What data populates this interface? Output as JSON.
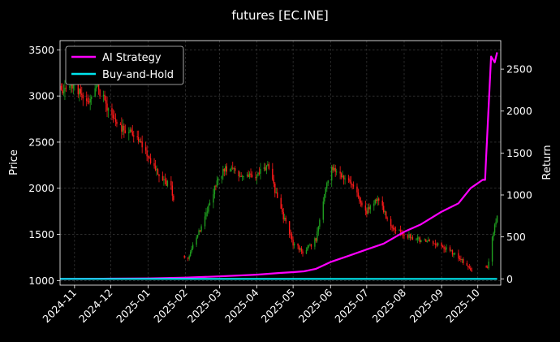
{
  "chart_data": {
    "type": "line",
    "title": "futures [EC.INE]",
    "xlabel": "",
    "ylabel": "Price",
    "y2label": "Return",
    "colors": {
      "background": "#000000",
      "up": "#1f9e1f",
      "down": "#ff1a1a",
      "ai": "#ff00ff",
      "bh": "#00e5ee",
      "axes": "#ffffff"
    },
    "legend_position": "top-left",
    "grid": true,
    "x_ticks": [
      "2024-11",
      "2024-12",
      "2025-01",
      "2025-02",
      "2025-03",
      "2025-04",
      "2025-05",
      "2025-06",
      "2025-07",
      "2025-08",
      "2025-09",
      "2025-10"
    ],
    "x_range": [
      "2024-10-20",
      "2025-10-20"
    ],
    "ylim": [
      950,
      3600
    ],
    "y_ticks": [
      1000,
      1500,
      2000,
      2500,
      3000,
      3500
    ],
    "y2lim": [
      -75,
      2840
    ],
    "y2_ticks": [
      0,
      500,
      1000,
      1500,
      2000,
      2500
    ],
    "price_series": {
      "name": "EC.INE price",
      "x": [
        "2024-10-21",
        "2024-11-01",
        "2024-11-10",
        "2024-11-20",
        "2024-12-01",
        "2024-12-10",
        "2024-12-20",
        "2025-01-01",
        "2025-01-10",
        "2025-01-20",
        "2025-02-01",
        "2025-02-10",
        "2025-02-20",
        "2025-03-01",
        "2025-03-10",
        "2025-03-20",
        "2025-04-01",
        "2025-04-10",
        "2025-04-20",
        "2025-05-01",
        "2025-05-10",
        "2025-05-20",
        "2025-06-01",
        "2025-06-10",
        "2025-06-20",
        "2025-07-01",
        "2025-07-10",
        "2025-07-20",
        "2025-08-01",
        "2025-08-10",
        "2025-08-20",
        "2025-09-01",
        "2025-09-10",
        "2025-09-20",
        "2025-09-25",
        "2025-10-09",
        "2025-10-15",
        "2025-10-17"
      ],
      "y": [
        3050,
        3150,
        2900,
        3100,
        2800,
        2650,
        2600,
        2350,
        2150,
        2000,
        1200,
        1450,
        1800,
        2150,
        2250,
        2100,
        2150,
        2250,
        1800,
        1400,
        1300,
        1450,
        2250,
        2150,
        2000,
        1750,
        1900,
        1600,
        1500,
        1450,
        1420,
        1380,
        1300,
        1200,
        1100,
        1150,
        1600,
        1700
      ]
    },
    "series": [
      {
        "name": "AI Strategy",
        "x": [
          "2024-10-20",
          "2024-12-01",
          "2025-01-01",
          "2025-02-01",
          "2025-03-01",
          "2025-04-01",
          "2025-04-20",
          "2025-05-01",
          "2025-05-10",
          "2025-05-20",
          "2025-06-01",
          "2025-06-15",
          "2025-07-01",
          "2025-07-15",
          "2025-08-01",
          "2025-08-15",
          "2025-09-01",
          "2025-09-15",
          "2025-09-25",
          "2025-10-05",
          "2025-10-07",
          "2025-10-08",
          "2025-10-12",
          "2025-10-15",
          "2025-10-17"
        ],
        "y": [
          0,
          2,
          5,
          15,
          30,
          50,
          70,
          80,
          90,
          120,
          200,
          270,
          350,
          420,
          560,
          650,
          800,
          900,
          1080,
          1180,
          1180,
          1470,
          2650,
          2580,
          2700
        ]
      },
      {
        "name": "Buy-and-Hold",
        "x": [
          "2024-10-20",
          "2025-10-17"
        ],
        "y": [
          0,
          0
        ]
      }
    ]
  }
}
